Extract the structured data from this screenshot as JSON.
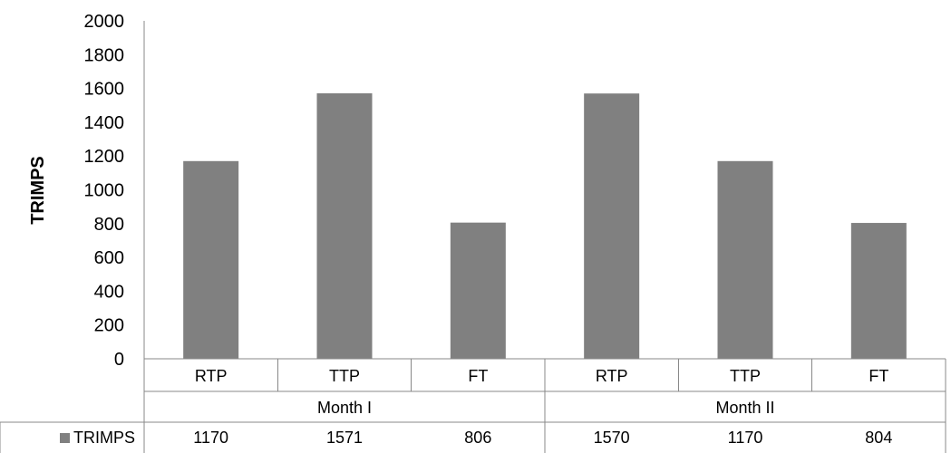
{
  "chart_data": {
    "type": "bar",
    "ylabel": "TRIMPS",
    "ylim": [
      0,
      2000
    ],
    "yticks": [
      0,
      200,
      400,
      600,
      800,
      1000,
      1200,
      1400,
      1600,
      1800,
      2000
    ],
    "groups": [
      {
        "label": "Month I",
        "categories": [
          "RTP",
          "TTP",
          "FT"
        ]
      },
      {
        "label": "Month II",
        "categories": [
          "RTP",
          "TTP",
          "FT"
        ]
      }
    ],
    "categories": [
      "RTP",
      "TTP",
      "FT",
      "RTP",
      "TTP",
      "FT"
    ],
    "series": [
      {
        "name": "TRIMPS",
        "values": [
          1170,
          1571,
          806,
          1570,
          1170,
          804
        ],
        "color": "#808080"
      }
    ],
    "data_table": true,
    "grid": false
  }
}
